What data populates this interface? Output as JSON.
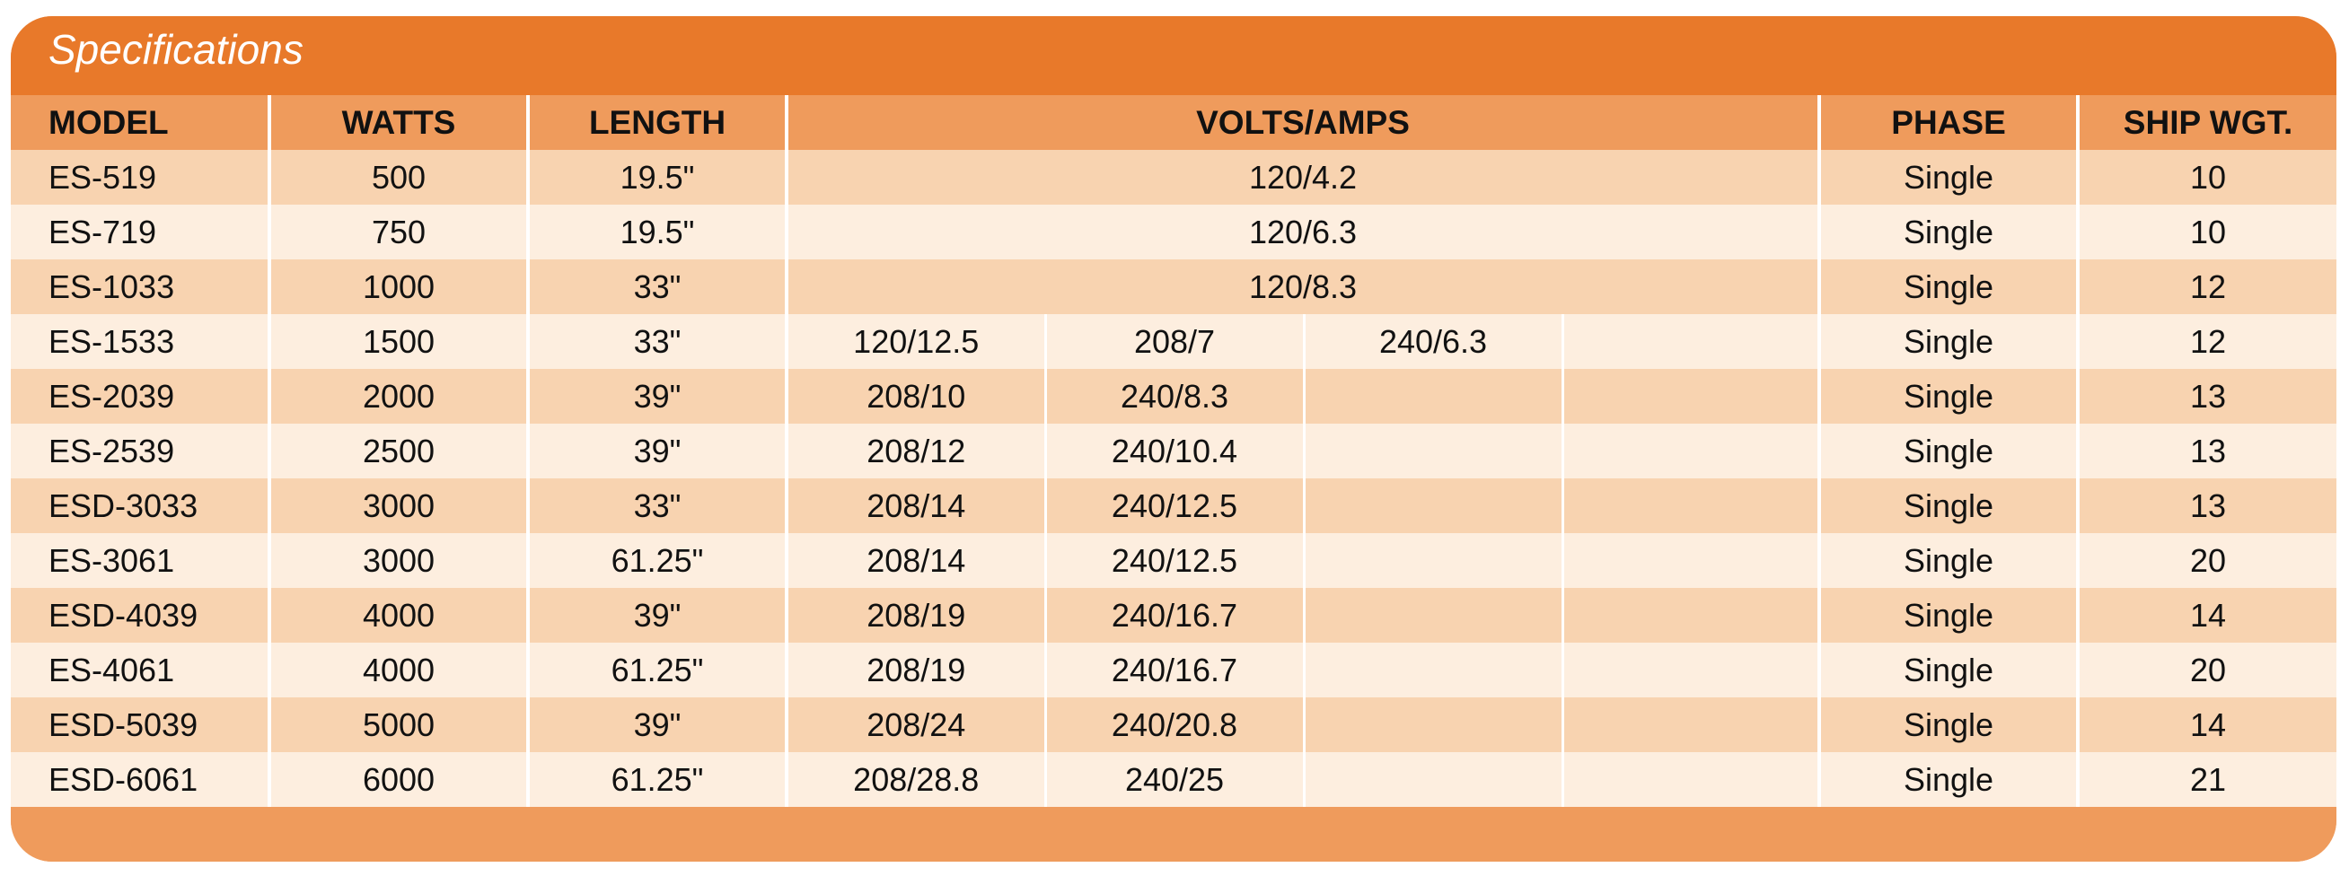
{
  "title": "Specifications",
  "columns": [
    "MODEL",
    "WATTS",
    "LENGTH",
    "VOLTS/AMPS",
    "PHASE",
    "SHIP WGT."
  ],
  "rows": [
    {
      "model": "ES-519",
      "watts": "500",
      "length": "19.5\"",
      "volts_amps": [
        "120/4.2"
      ],
      "phase": "Single",
      "ship_wgt": "10"
    },
    {
      "model": "ES-719",
      "watts": "750",
      "length": "19.5\"",
      "volts_amps": [
        "120/6.3"
      ],
      "phase": "Single",
      "ship_wgt": "10"
    },
    {
      "model": "ES-1033",
      "watts": "1000",
      "length": "33\"",
      "volts_amps": [
        "120/8.3"
      ],
      "phase": "Single",
      "ship_wgt": "12"
    },
    {
      "model": "ES-1533",
      "watts": "1500",
      "length": "33\"",
      "volts_amps": [
        "120/12.5",
        "208/7",
        "240/6.3",
        ""
      ],
      "phase": "Single",
      "ship_wgt": "12"
    },
    {
      "model": "ES-2039",
      "watts": "2000",
      "length": "39\"",
      "volts_amps": [
        "208/10",
        "240/8.3",
        "",
        ""
      ],
      "phase": "Single",
      "ship_wgt": "13"
    },
    {
      "model": "ES-2539",
      "watts": "2500",
      "length": "39\"",
      "volts_amps": [
        "208/12",
        "240/10.4",
        "",
        ""
      ],
      "phase": "Single",
      "ship_wgt": "13"
    },
    {
      "model": "ESD-3033",
      "watts": "3000",
      "length": "33\"",
      "volts_amps": [
        "208/14",
        "240/12.5",
        "",
        ""
      ],
      "phase": "Single",
      "ship_wgt": "13"
    },
    {
      "model": "ES-3061",
      "watts": "3000",
      "length": "61.25\"",
      "volts_amps": [
        "208/14",
        "240/12.5",
        "",
        ""
      ],
      "phase": "Single",
      "ship_wgt": "20"
    },
    {
      "model": "ESD-4039",
      "watts": "4000",
      "length": "39\"",
      "volts_amps": [
        "208/19",
        "240/16.7",
        "",
        ""
      ],
      "phase": "Single",
      "ship_wgt": "14"
    },
    {
      "model": "ES-4061",
      "watts": "4000",
      "length": "61.25\"",
      "volts_amps": [
        "208/19",
        "240/16.7",
        "",
        ""
      ],
      "phase": "Single",
      "ship_wgt": "20"
    },
    {
      "model": "ESD-5039",
      "watts": "5000",
      "length": "39\"",
      "volts_amps": [
        "208/24",
        "240/20.8",
        "",
        ""
      ],
      "phase": "Single",
      "ship_wgt": "14"
    },
    {
      "model": "ESD-6061",
      "watts": "6000",
      "length": "61.25\"",
      "volts_amps": [
        "208/28.8",
        "240/25",
        "",
        ""
      ],
      "phase": "Single",
      "ship_wgt": "21"
    }
  ]
}
